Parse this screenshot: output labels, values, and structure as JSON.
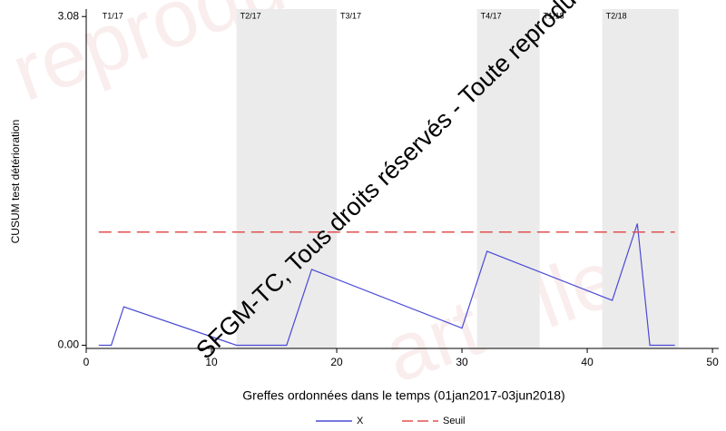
{
  "chart_data": {
    "type": "line",
    "watermark": "SFGM-TC, Tous droits réservés - Toute reproduction",
    "background_watermarks": [
      "reproduc",
      "artielle"
    ],
    "xlabel": "Greffes ordonnées dans le temps (01jan2017-03jun2018)",
    "ylabel": "CUSUM test détérioration",
    "xlim": [
      0,
      50.5
    ],
    "ylim": [
      -0.03,
      3.15
    ],
    "xticks": [
      0,
      10,
      20,
      30,
      40,
      50
    ],
    "yticks": [
      {
        "value": 0,
        "label": "0.00"
      },
      {
        "value": 3.08,
        "label": "3.08"
      }
    ],
    "periods": [
      {
        "label": "T1/17",
        "start": 1,
        "end": 12,
        "shaded": false
      },
      {
        "label": "T2/17",
        "start": 12,
        "end": 20,
        "shaded": true
      },
      {
        "label": "T3/17",
        "start": 20,
        "end": 31.2,
        "shaded": false
      },
      {
        "label": "T4/17",
        "start": 31.2,
        "end": 36.2,
        "shaded": true
      },
      {
        "label": "T1/18",
        "start": 36.2,
        "end": 41.2,
        "shaded": false
      },
      {
        "label": "T2/18",
        "start": 41.2,
        "end": 47.3,
        "shaded": true
      }
    ],
    "shade_color": "#ebebeb",
    "series": [
      {
        "name": "X",
        "color": "#4a4ad6",
        "dashed": false,
        "x": [
          1,
          2,
          3,
          12,
          16,
          18,
          30,
          32,
          42,
          44,
          45,
          47
        ],
        "values": [
          0,
          0,
          0.36,
          0,
          0,
          0.71,
          0.16,
          0.88,
          0.42,
          1.14,
          0,
          0
        ]
      },
      {
        "name": "Seuil",
        "color": "#e05050",
        "dashed": true,
        "x": [
          1,
          47
        ],
        "values": [
          1.06,
          1.06
        ]
      }
    ]
  }
}
